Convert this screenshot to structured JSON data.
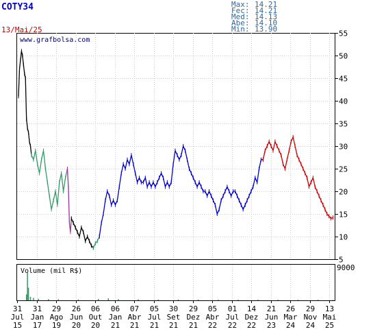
{
  "chart_data": {
    "type": "line",
    "ticker": "COTY34",
    "date": "13/Mai/25",
    "watermark": "www.grafbolsa.com",
    "stats": [
      {
        "label": "Max:",
        "value": "14.21"
      },
      {
        "label": "Fec:",
        "value": "14.21"
      },
      {
        "label": "Med:",
        "value": "14.13"
      },
      {
        "label": "Abe:",
        "value": "14.10"
      },
      {
        "label": "Min:",
        "value": "13.90"
      }
    ],
    "ylim": [
      5,
      55
    ],
    "yticks": [
      "55",
      "50",
      "45",
      "40",
      "35",
      "30",
      "25",
      "20",
      "15",
      "10",
      "5"
    ],
    "volume_label": "Volume (mil R$)",
    "volume_max_label": "9000",
    "volume_ylim": [
      0,
      9000
    ],
    "xticks": [
      {
        "day": "31",
        "month": "Jul",
        "year": "15"
      },
      {
        "day": "31",
        "month": "Jan",
        "year": "17"
      },
      {
        "day": "29",
        "month": "Ago",
        "year": "19"
      },
      {
        "day": "26",
        "month": "Jun",
        "year": "20"
      },
      {
        "day": "06",
        "month": "Out",
        "year": "20"
      },
      {
        "day": "06",
        "month": "Jan",
        "year": "21"
      },
      {
        "day": "07",
        "month": "Abr",
        "year": "21"
      },
      {
        "day": "05",
        "month": "Jul",
        "year": "21"
      },
      {
        "day": "30",
        "month": "Set",
        "year": "21"
      },
      {
        "day": "29",
        "month": "Dez",
        "year": "21"
      },
      {
        "day": "05",
        "month": "Abr",
        "year": "22"
      },
      {
        "day": "01",
        "month": "Jul",
        "year": "22"
      },
      {
        "day": "14",
        "month": "Dez",
        "year": "22"
      },
      {
        "day": "21",
        "month": "Jun",
        "year": "23"
      },
      {
        "day": "26",
        "month": "Mar",
        "year": "24"
      },
      {
        "day": "29",
        "month": "Nov",
        "year": "24"
      },
      {
        "day": "13",
        "month": "Mai",
        "year": "25"
      }
    ],
    "series": [
      {
        "color": "#000000",
        "x": [
          0,
          1,
          2,
          3,
          4,
          5,
          6,
          7,
          8,
          9,
          10,
          11,
          12,
          13
        ],
        "y": [
          41,
          47,
          49,
          51,
          50,
          48,
          46,
          45,
          36,
          34,
          33,
          31,
          30,
          28
        ]
      },
      {
        "color": "#339966",
        "x": [
          13,
          15,
          17,
          19,
          21,
          23,
          25,
          27,
          29,
          31,
          33,
          35,
          37,
          39,
          41,
          43,
          45,
          47,
          49
        ],
        "y": [
          28,
          27,
          29,
          26,
          24,
          27,
          29,
          25,
          22,
          19,
          16,
          18,
          20,
          17,
          22,
          24,
          20,
          23,
          25
        ]
      },
      {
        "color": "#993399",
        "x": [
          49,
          50,
          51,
          52,
          53
        ],
        "y": [
          25,
          21,
          13,
          11,
          14
        ]
      },
      {
        "color": "#000000",
        "x": [
          53,
          55,
          57,
          59,
          61,
          63,
          65,
          67,
          69,
          71,
          73,
          75
        ],
        "y": [
          14,
          13,
          12,
          11,
          10,
          12,
          11,
          9,
          10,
          9,
          8,
          7.5
        ]
      },
      {
        "color": "#339966",
        "x": [
          75,
          77,
          79,
          81
        ],
        "y": [
          7.5,
          8.5,
          9,
          10
        ]
      },
      {
        "color": "#0000cc",
        "x": [
          81,
          83,
          85,
          87,
          89,
          91,
          93,
          95,
          97,
          99,
          101,
          103,
          105,
          107,
          109,
          111,
          113,
          115,
          117,
          119,
          121,
          123,
          125,
          127,
          129,
          131,
          133,
          135,
          137,
          139,
          141,
          143,
          145,
          147,
          149,
          151,
          153,
          155,
          157,
          159,
          161,
          163,
          165,
          167,
          169,
          171,
          173,
          175,
          177,
          179,
          181,
          183,
          185,
          187,
          189,
          191,
          193,
          195,
          197,
          199,
          201,
          203,
          205,
          207,
          209,
          211,
          213,
          215,
          217,
          219,
          221,
          223,
          225,
          227,
          229,
          231,
          233,
          235,
          237,
          239,
          241,
          243,
          245
        ],
        "y": [
          10,
          13,
          15,
          18,
          20,
          19,
          17,
          18,
          17,
          18,
          21,
          24,
          26,
          25,
          27,
          26,
          28,
          26,
          24,
          22,
          23,
          22,
          22,
          23,
          21,
          22,
          21,
          22,
          21,
          22,
          23,
          24,
          23,
          21,
          22,
          21,
          22,
          26,
          29,
          28,
          27,
          28,
          30,
          29,
          27,
          25,
          24,
          23,
          22,
          21,
          22,
          21,
          20,
          20,
          19,
          20,
          19,
          18,
          17,
          15,
          16,
          18,
          19,
          20,
          21,
          20,
          19,
          20,
          20,
          19,
          18,
          17,
          16,
          17,
          18,
          19,
          20,
          21,
          23,
          22,
          25,
          27,
          27
        ]
      },
      {
        "color": "#cc0000",
        "x": [
          245,
          247,
          249,
          251,
          253,
          255,
          257,
          259,
          261,
          263,
          265,
          267,
          269,
          271,
          273,
          275,
          277,
          279,
          281,
          283,
          285,
          287,
          289,
          291,
          293,
          295,
          297,
          299,
          301,
          303,
          305,
          307,
          309,
          311,
          313,
          315
        ],
        "y": [
          27,
          29,
          30,
          31,
          30,
          29,
          31,
          30,
          29,
          28,
          26,
          25,
          27,
          29,
          31,
          32,
          30,
          28,
          27,
          26,
          25,
          24,
          23,
          21,
          22,
          23,
          21,
          20,
          19,
          18,
          17,
          16,
          15,
          14.5,
          14,
          14.2
        ]
      }
    ],
    "volume": {
      "color": "#339966",
      "x": [
        8,
        9,
        10,
        12,
        15,
        20,
        30,
        40,
        60,
        80,
        90,
        100,
        120,
        140,
        160,
        180,
        200,
        220,
        240,
        260,
        280,
        300,
        315
      ],
      "values": [
        1500,
        7000,
        3200,
        900,
        600,
        400,
        300,
        300,
        250,
        350,
        500,
        300,
        250,
        200,
        220,
        200,
        180,
        160,
        170,
        150,
        160,
        150,
        140
      ]
    }
  }
}
